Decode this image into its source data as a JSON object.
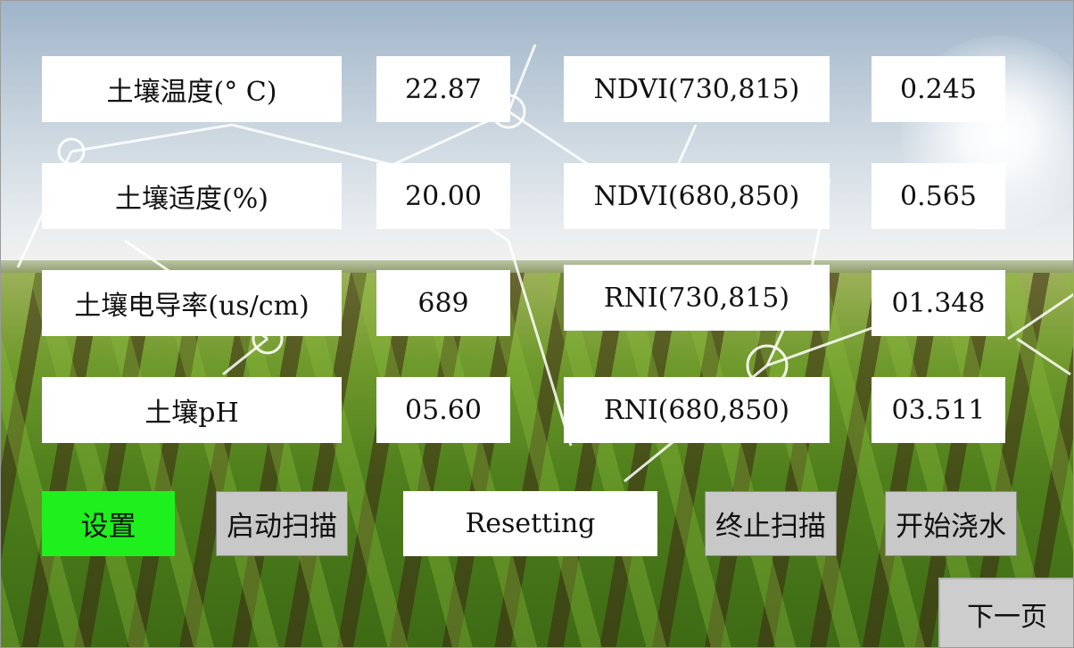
{
  "sensors": [
    {
      "label": "土壤温度(° C)",
      "value": "22.87"
    },
    {
      "label": "土壤适度(%)",
      "value": "20.00"
    },
    {
      "label": "土壤电导率(us/cm)",
      "value": "689"
    },
    {
      "label": "土壤pH",
      "value": "05.60"
    }
  ],
  "indices": [
    {
      "label": "NDVI(730,815)",
      "value": "0.245"
    },
    {
      "label": "NDVI(680,850)",
      "value": "0.565"
    },
    {
      "label": "RNI(730,815)",
      "value": "01.348"
    },
    {
      "label": "RNI(680,850)",
      "value": "03.511"
    }
  ],
  "controls": {
    "settings_label": "设置",
    "start_scan_label": "启动扫描",
    "status_text": "Resetting",
    "stop_scan_label": "终止扫描",
    "start_watering_label": "开始浇水",
    "next_page_label": "下一页"
  },
  "colors": {
    "settings_button": "#1ef01e",
    "button_gray": "#c8c8c8",
    "panel_white": "#ffffff"
  }
}
